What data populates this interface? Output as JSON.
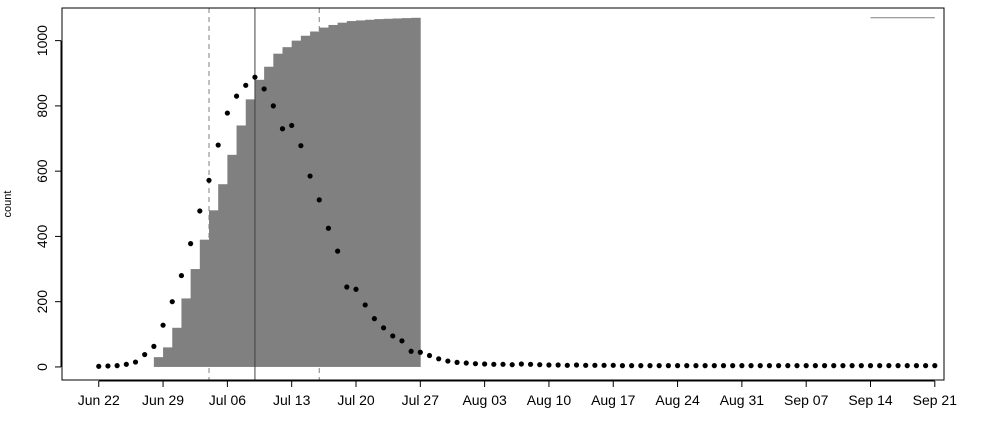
{
  "chart_data": {
    "type": "scatter",
    "title": "",
    "xlabel": "",
    "ylabel": "count",
    "xlim": [
      "2020-06-18",
      "2020-09-22"
    ],
    "ylim": [
      -40,
      1100
    ],
    "grid": false,
    "legend": "none",
    "x_ticks": [
      {
        "date": "2020-06-22",
        "label": "Jun 22"
      },
      {
        "date": "2020-06-29",
        "label": "Jun 29"
      },
      {
        "date": "2020-07-06",
        "label": "Jul 06"
      },
      {
        "date": "2020-07-13",
        "label": "Jul 13"
      },
      {
        "date": "2020-07-20",
        "label": "Jul 20"
      },
      {
        "date": "2020-07-27",
        "label": "Jul 27"
      },
      {
        "date": "2020-08-03",
        "label": "Aug 03"
      },
      {
        "date": "2020-08-10",
        "label": "Aug 10"
      },
      {
        "date": "2020-08-17",
        "label": "Aug 17"
      },
      {
        "date": "2020-08-24",
        "label": "Aug 24"
      },
      {
        "date": "2020-08-31",
        "label": "Aug 31"
      },
      {
        "date": "2020-09-07",
        "label": "Sep 07"
      },
      {
        "date": "2020-09-14",
        "label": "Sep 14"
      },
      {
        "date": "2020-09-21",
        "label": "Sep 21"
      }
    ],
    "y_ticks": [
      {
        "value": 0,
        "label": "0"
      },
      {
        "value": 200,
        "label": "200"
      },
      {
        "value": 400,
        "label": "400"
      },
      {
        "value": 600,
        "label": "600"
      },
      {
        "value": 800,
        "label": "800"
      },
      {
        "value": 1000,
        "label": "1000"
      }
    ],
    "points_start_date": "2020-06-22",
    "points": [
      2,
      3,
      4,
      8,
      15,
      38,
      63,
      128,
      200,
      280,
      378,
      478,
      572,
      680,
      778,
      830,
      863,
      888,
      852,
      800,
      730,
      740,
      678,
      585,
      512,
      425,
      355,
      245,
      238,
      190,
      148,
      120,
      95,
      80,
      48,
      45,
      35,
      25,
      18,
      14,
      12,
      10,
      9,
      8,
      8,
      7,
      9,
      8,
      7,
      6,
      6,
      5,
      6,
      5,
      5,
      5,
      5,
      4,
      4,
      4,
      4,
      4,
      4,
      4,
      4,
      4,
      4,
      4,
      4,
      4,
      4,
      4,
      4,
      4,
      4,
      4,
      4,
      4,
      4,
      4,
      4,
      4,
      4,
      4,
      4,
      4,
      4,
      4,
      4,
      4,
      4,
      4
    ],
    "cumulative_start_date": "2020-06-28",
    "cumulative": [
      30,
      60,
      120,
      210,
      300,
      390,
      480,
      560,
      650,
      740,
      820,
      880,
      920,
      960,
      980,
      1000,
      1015,
      1028,
      1040,
      1048,
      1055,
      1060,
      1062,
      1064,
      1066,
      1067,
      1068,
      1069,
      1070
    ],
    "bar_color": "#808080",
    "point_color": "#000000",
    "vlines": [
      {
        "date": "2020-07-04",
        "style": "dashed",
        "color": "#808080"
      },
      {
        "date": "2020-07-09",
        "style": "solid",
        "color": "#404040"
      },
      {
        "date": "2020-07-16",
        "style": "dashed",
        "color": "#808080"
      }
    ],
    "segments": [
      {
        "from": "2020-09-14",
        "to": "2020-09-21",
        "value": 1070
      }
    ]
  }
}
